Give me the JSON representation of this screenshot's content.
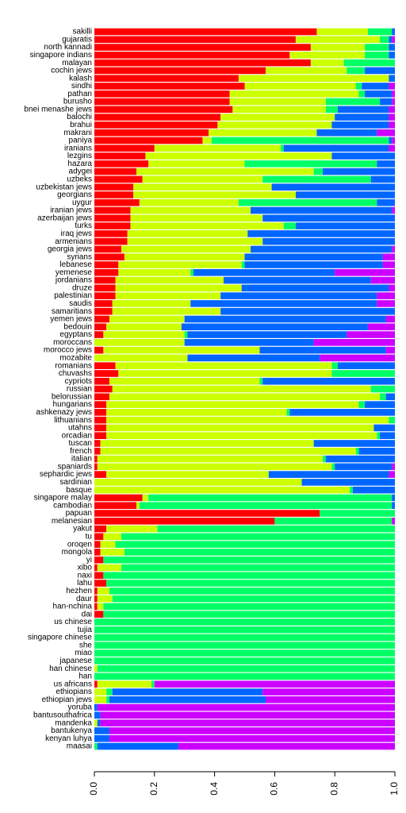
{
  "chart_data": {
    "type": "stacked-barh",
    "categories": [
      "sakilli",
      "gujaratis",
      "north kannadi",
      "singapore indians",
      "malayan",
      "cochin jews",
      "kalash",
      "sindhi",
      "pathan",
      "burusho",
      "bnei menashe jews",
      "balochi",
      "brahui",
      "makrani",
      "paniya",
      "iranians",
      "lezgins",
      "hazara",
      "adygei",
      "uzbeks",
      "uzbekistan jews",
      "georgians",
      "uygur",
      "iranian jews",
      "azerbaijan jews",
      "turks",
      "iraq jews",
      "armenians",
      "georgia jews",
      "syrians",
      "lebanese",
      "yemenese",
      "jordanians",
      "druze",
      "palestinian",
      "saudis",
      "samaritians",
      "yemen jews",
      "bedouin",
      "egyptans",
      "moroccans",
      "morocco jews",
      "mozabite",
      "romanians",
      "chuvashs",
      "cypriots",
      "russian",
      "belorussian",
      "hungarians",
      "ashkenazy jews",
      "lithuanians",
      "utahns",
      "orcadian",
      "tuscan",
      "french",
      "italian",
      "spaniards",
      "sephardic jews",
      "sardinian",
      "basque",
      "singapore malay",
      "cambodian",
      "papuan",
      "melanesian",
      "yakut",
      "tu",
      "oroqen",
      "mongola",
      "yi",
      "xibo",
      "naxi",
      "lahu",
      "hezhen",
      "daur",
      "han-nchina",
      "dai",
      "us chinese",
      "tujia",
      "singapore chinese",
      "she",
      "miao",
      "japanese",
      "han chinese",
      "han",
      "us africans",
      "ethiopians",
      "ethiopian jews",
      "yoruba",
      "bantusouthafrica",
      "mandenka",
      "bantukenya",
      "kenyan luhya",
      "maasai"
    ],
    "series": [
      {
        "color": "#ff0000",
        "values": [
          0.74,
          0.67,
          0.72,
          0.65,
          0.72,
          0.57,
          0.48,
          0.5,
          0.45,
          0.45,
          0.46,
          0.42,
          0.41,
          0.38,
          0.36,
          0.2,
          0.17,
          0.18,
          0.14,
          0.16,
          0.13,
          0.13,
          0.15,
          0.12,
          0.12,
          0.12,
          0.11,
          0.11,
          0.09,
          0.1,
          0.08,
          0.08,
          0.07,
          0.07,
          0.07,
          0.06,
          0.06,
          0.05,
          0.04,
          0.03,
          0,
          0.03,
          0,
          0.07,
          0.08,
          0.05,
          0.06,
          0.05,
          0.04,
          0.04,
          0.04,
          0.04,
          0.04,
          0.02,
          0.02,
          0.01,
          0.01,
          0.04,
          0,
          0,
          0.16,
          0.14,
          0.75,
          0.6,
          0.04,
          0.03,
          0.02,
          0.02,
          0.03,
          0.01,
          0.03,
          0.04,
          0.01,
          0.01,
          0.01,
          0.03,
          0,
          0,
          0,
          0,
          0,
          0,
          0,
          0,
          0.01,
          0,
          0,
          0,
          0,
          0,
          0,
          0,
          0
        ]
      },
      {
        "color": "#ccff00",
        "values": [
          0.17,
          0.28,
          0.18,
          0.25,
          0.11,
          0.27,
          0.5,
          0.37,
          0.43,
          0.32,
          0.31,
          0.38,
          0.38,
          0.36,
          0.03,
          0.42,
          0.62,
          0.32,
          0.59,
          0.4,
          0.46,
          0.54,
          0.33,
          0.4,
          0.44,
          0.51,
          0.4,
          0.45,
          0.43,
          0.4,
          0.41,
          0.24,
          0.36,
          0.42,
          0.35,
          0.26,
          0.36,
          0.25,
          0.25,
          0.27,
          0.3,
          0.52,
          0.31,
          0.72,
          0.71,
          0.5,
          0.86,
          0.9,
          0.84,
          0.6,
          0.94,
          0.89,
          0.9,
          0.71,
          0.85,
          0.75,
          0.78,
          0.54,
          0.69,
          0.85,
          0.02,
          0.01,
          0,
          0,
          0.17,
          0.06,
          0.05,
          0.08,
          0,
          0.08,
          0,
          0,
          0.04,
          0.05,
          0.02,
          0,
          0,
          0,
          0,
          0,
          0,
          0,
          0.01,
          0,
          0.18,
          0.04,
          0.04,
          0,
          0,
          0.01,
          0,
          0,
          0
        ]
      },
      {
        "color": "#00ff66",
        "values": [
          0.08,
          0.03,
          0.08,
          0.08,
          0.17,
          0.06,
          0,
          0.02,
          0.02,
          0.18,
          0.04,
          0,
          0,
          0,
          0.59,
          0.01,
          0,
          0.44,
          0.03,
          0.36,
          0,
          0,
          0.46,
          0,
          0,
          0.04,
          0,
          0,
          0,
          0,
          0.01,
          0.01,
          0,
          0,
          0,
          0,
          0,
          0,
          0,
          0.01,
          0,
          0,
          0,
          0.02,
          0.21,
          0.01,
          0.08,
          0.02,
          0.02,
          0.01,
          0.02,
          0,
          0.01,
          0,
          0.01,
          0.01,
          0.01,
          0,
          0,
          0.01,
          0.81,
          0.84,
          0.25,
          0.39,
          0.79,
          0.91,
          0.93,
          0.9,
          0.97,
          0.91,
          0.97,
          0.96,
          0.95,
          0.94,
          0.97,
          0.97,
          1,
          1,
          1,
          1,
          1,
          1,
          0.99,
          1,
          0.01,
          0.02,
          0.01,
          0,
          0,
          0,
          0,
          0,
          0.01
        ]
      },
      {
        "color": "#0066ff",
        "values": [
          0.01,
          0.01,
          0.02,
          0.02,
          0,
          0.1,
          0.02,
          0.09,
          0.09,
          0.04,
          0.17,
          0.18,
          0.19,
          0.2,
          0.01,
          0.35,
          0.21,
          0.06,
          0.24,
          0.08,
          0.41,
          0.33,
          0.06,
          0.47,
          0.44,
          0.33,
          0.49,
          0.44,
          0.47,
          0.46,
          0.46,
          0.47,
          0.49,
          0.49,
          0.52,
          0.62,
          0.58,
          0.67,
          0.62,
          0.53,
          0.43,
          0.42,
          0.44,
          0.19,
          0,
          0.44,
          0,
          0.03,
          0.1,
          0.35,
          0,
          0.07,
          0.05,
          0.27,
          0.12,
          0.23,
          0.19,
          0.4,
          0.31,
          0.14,
          0.01,
          0.01,
          0,
          0,
          0,
          0,
          0,
          0,
          0,
          0,
          0,
          0,
          0,
          0,
          0,
          0,
          0,
          0,
          0,
          0,
          0,
          0,
          0,
          0,
          0,
          0.5,
          0.52,
          0.01,
          0.02,
          0.01,
          0.05,
          0.05,
          0.27
        ]
      },
      {
        "color": "#cc00ff",
        "values": [
          0,
          0.01,
          0,
          0,
          0,
          0,
          0,
          0.02,
          0.01,
          0.01,
          0.02,
          0.02,
          0.02,
          0.06,
          0.01,
          0.02,
          0,
          0,
          0,
          0,
          0,
          0,
          0,
          0.01,
          0,
          0,
          0,
          0,
          0.01,
          0.04,
          0.04,
          0.2,
          0.08,
          0.02,
          0.06,
          0.06,
          0,
          0.03,
          0.09,
          0.16,
          0.27,
          0.03,
          0.25,
          0,
          0,
          0,
          0,
          0,
          0,
          0,
          0,
          0,
          0,
          0,
          0,
          0,
          0.01,
          0.02,
          0,
          0,
          0,
          0,
          0,
          0.01,
          0,
          0,
          0,
          0,
          0,
          0,
          0,
          0,
          0,
          0,
          0,
          0,
          0,
          0,
          0,
          0,
          0,
          0,
          0,
          0,
          0.8,
          0.44,
          0.43,
          0.99,
          0.98,
          0.98,
          0.95,
          0.95,
          0.72
        ]
      }
    ],
    "xlim": [
      0,
      1
    ],
    "xticks": [
      {
        "value": 0,
        "label": "0.0"
      },
      0.2,
      0.4,
      0.6,
      0.8,
      {
        "value": 1,
        "label": "1.0"
      }
    ]
  }
}
